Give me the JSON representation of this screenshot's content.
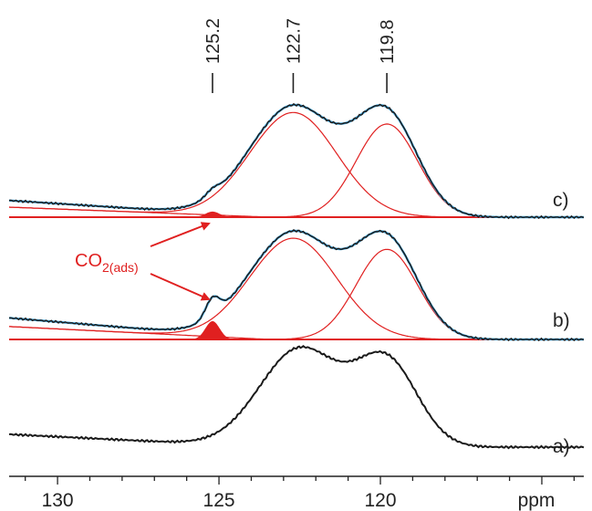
{
  "chart_data": {
    "type": "line",
    "xlabel": "ppm",
    "xlim": [
      131.5,
      113.7
    ],
    "x_ticks": [
      130,
      125,
      120,
      "ppm"
    ],
    "peak_labels": [
      "125.2",
      "122.7",
      "119.8"
    ],
    "peak_positions": [
      125.2,
      122.7,
      119.8
    ],
    "annotation": {
      "base": "CO",
      "subscript": "2(ads)"
    },
    "traces": [
      {
        "label": "a)",
        "components": [
          {
            "center": 122.5,
            "width": 1.25,
            "amp": 1.0
          },
          {
            "center": 119.8,
            "width": 0.95,
            "amp": 0.85
          }
        ],
        "background": [
          0.13,
          0.0
        ]
      },
      {
        "label": "b)",
        "components": [
          {
            "center": 122.7,
            "width": 1.35,
            "amp": 1.0
          },
          {
            "center": 119.8,
            "width": 0.95,
            "amp": 0.89
          },
          {
            "center": 125.2,
            "width": 0.22,
            "amp": 0.17
          }
        ],
        "background": [
          0.2,
          0.0
        ]
      },
      {
        "label": "c)",
        "components": [
          {
            "center": 122.7,
            "width": 1.35,
            "amp": 1.0
          },
          {
            "center": 119.8,
            "width": 0.95,
            "amp": 0.89
          },
          {
            "center": 125.2,
            "width": 0.22,
            "amp": 0.05
          }
        ],
        "background": [
          0.15,
          0.0
        ]
      }
    ],
    "colors": {
      "experimental": "#1a1a1a",
      "fit_total": "#3aa0d8",
      "components": "#e02020",
      "co2_fill": "#e02020"
    }
  }
}
